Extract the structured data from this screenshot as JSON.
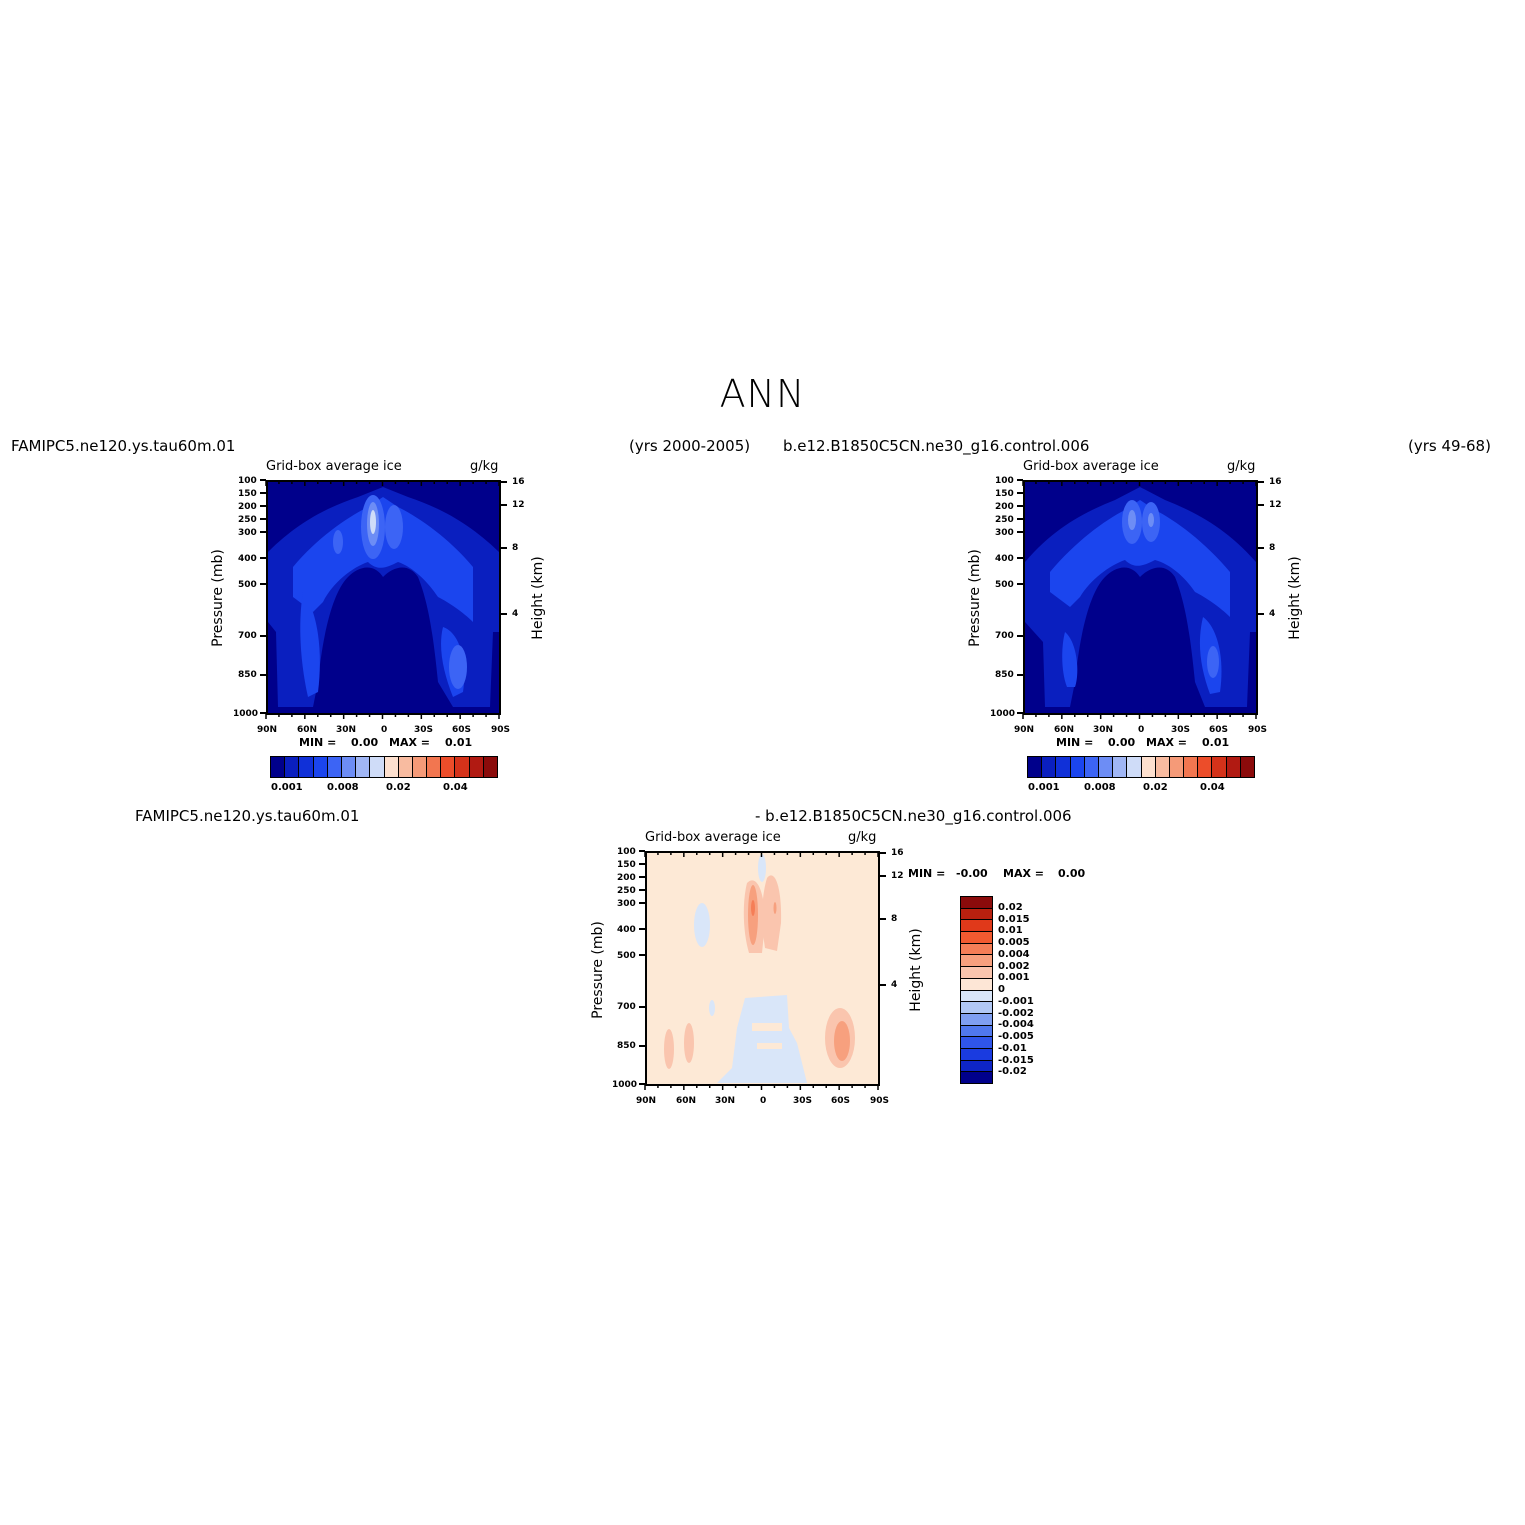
{
  "title": "ANN",
  "panels": [
    {
      "case": "FAMIPC5.ne120.ys.tau60m.01",
      "years": "(yrs 2000-2005)",
      "var_label": "Grid-box average ice",
      "units": "g/kg",
      "min_text": "MIN =",
      "min_val": "0.00",
      "max_text": "MAX =",
      "max_val": "0.01"
    },
    {
      "case": "b.e12.B1850C5CN.ne30_g16.control.006",
      "years": "(yrs 49-68)",
      "var_label": "Grid-box average ice",
      "units": "g/kg",
      "min_text": "MIN =",
      "min_val": "0.00",
      "max_text": "MAX =",
      "max_val": "0.01"
    },
    {
      "case_a": "FAMIPC5.ne120.ys.tau60m.01",
      "case_b": "- b.e12.B1850C5CN.ne30_g16.control.006",
      "var_label": "Grid-box average ice",
      "units": "g/kg",
      "min_text": "MIN =",
      "min_val": "-0.00",
      "max_text": "MAX =",
      "max_val": "0.00"
    }
  ],
  "axes": {
    "ylabel_left": "Pressure (mb)",
    "ylabel_right": "Height (km)",
    "pressure_ticks": [
      "100",
      "150",
      "200",
      "250",
      "300",
      "400",
      "500",
      "700",
      "850",
      "1000"
    ],
    "height_ticks": [
      "16",
      "12",
      "8",
      "4"
    ],
    "lat_ticks": [
      "90N",
      "60N",
      "30N",
      "0",
      "30S",
      "60S",
      "90S"
    ]
  },
  "colorbar_main": {
    "colors": [
      "#00008b",
      "#0a1fbf",
      "#1030d8",
      "#1b45ee",
      "#3c64f5",
      "#6d8df5",
      "#a0b6f5",
      "#cfdcf8",
      "#fde0cf",
      "#f8bba0",
      "#f59a78",
      "#f27650",
      "#ec4d2a",
      "#d4321a",
      "#b11a12",
      "#8b0b0b"
    ],
    "labels": [
      "0.001",
      "0.008",
      "0.02",
      "0.04"
    ]
  },
  "colorbar_diff": {
    "colors": [
      "#8b0b0b",
      "#b8200f",
      "#e0391a",
      "#f25a30",
      "#f57e57",
      "#f7a07e",
      "#fac5ae",
      "#fde6d6",
      "#d9e6f9",
      "#b1c8f5",
      "#7f9ff2",
      "#5078ee",
      "#2f55ea",
      "#1a3be0",
      "#0e25c6",
      "#00008b"
    ],
    "labels": [
      "0.02",
      "0.015",
      "0.01",
      "0.005",
      "0.004",
      "0.002",
      "0.001",
      "0",
      "-0.001",
      "-0.002",
      "-0.004",
      "-0.005",
      "-0.01",
      "-0.015",
      "-0.02"
    ]
  },
  "chart_data": [
    {
      "type": "heatmap",
      "title": "Grid-box average ice",
      "xlabel": "",
      "ylabel": "Pressure (mb)",
      "xlim": [
        90,
        -90
      ],
      "ylim": [
        1000,
        100
      ],
      "note_values": {
        "min": 0.0,
        "max": 0.01
      },
      "features": [
        {
          "lat": -5,
          "pressure": 250,
          "value": 0.008
        },
        {
          "lat": 10,
          "pressure": 250,
          "value": 0.006
        },
        {
          "lat": 65,
          "pressure": 800,
          "value": 0.005
        }
      ]
    },
    {
      "type": "heatmap",
      "title": "Grid-box average ice",
      "xlabel": "",
      "ylabel": "Pressure (mb)",
      "xlim": [
        90,
        -90
      ],
      "ylim": [
        1000,
        100
      ],
      "note_values": {
        "min": 0.0,
        "max": 0.01
      },
      "features": [
        {
          "lat": 5,
          "pressure": 250,
          "value": 0.005
        },
        {
          "lat": -8,
          "pressure": 250,
          "value": 0.004
        },
        {
          "lat": 60,
          "pressure": 800,
          "value": 0.004
        }
      ]
    },
    {
      "type": "heatmap",
      "title": "Grid-box average ice",
      "xlabel": "",
      "ylabel": "Pressure (mb)",
      "xlim": [
        90,
        -90
      ],
      "ylim": [
        1000,
        100
      ],
      "note_values": {
        "min": -0.0,
        "max": 0.0
      }
    }
  ]
}
